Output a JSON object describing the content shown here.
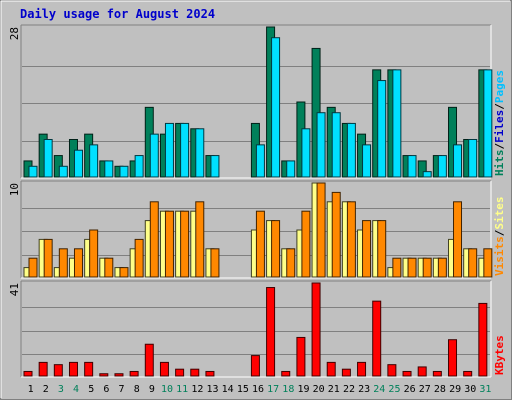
{
  "chart_data": {
    "type": "bar",
    "title": "Daily usage for August 2024",
    "days": [
      "1",
      "2",
      "3",
      "4",
      "5",
      "6",
      "7",
      "8",
      "9",
      "10",
      "11",
      "12",
      "13",
      "14",
      "15",
      "16",
      "17",
      "18",
      "19",
      "20",
      "21",
      "22",
      "23",
      "24",
      "25",
      "26",
      "27",
      "28",
      "29",
      "30",
      "31"
    ],
    "weekend_days": [
      3,
      4,
      10,
      11,
      17,
      18,
      24,
      25,
      31
    ],
    "colors": {
      "background": "#c0c0c0",
      "plot": "#c0c0c0",
      "grid": "#808080",
      "title": "#0000cc",
      "day_label": "#000000",
      "weekend_label": "#00805a",
      "hits": "#00805a",
      "files": "#00e0ff",
      "pages": "#00c0ff",
      "visits": "#ff8800",
      "sites": "#ffff88",
      "kbytes": "#ff0000",
      "slash": "#000000"
    },
    "panels": [
      {
        "id": "hits-files",
        "ymax_label": "28",
        "ymax": 28,
        "legend": [
          {
            "text": "Hits",
            "color_key": "hits"
          },
          {
            "text": "/",
            "color_key": "slash"
          },
          {
            "text": "Files",
            "color_key": "title"
          },
          {
            "text": "/",
            "color_key": "slash"
          },
          {
            "text": "Pages",
            "color_key": "pages"
          }
        ],
        "series": [
          {
            "name": "Hits",
            "color_key": "hits",
            "values": [
              3,
              8,
              4,
              7,
              8,
              3,
              2,
              3,
              13,
              8,
              10,
              9,
              4,
              0,
              0,
              10,
              28,
              3,
              14,
              24,
              13,
              10,
              8,
              20,
              20,
              4,
              3,
              4,
              13,
              7,
              20
            ]
          },
          {
            "name": "Files",
            "color_key": "files",
            "values": [
              2,
              7,
              2,
              5,
              6,
              3,
              2,
              4,
              8,
              10,
              10,
              9,
              4,
              0,
              0,
              6,
              26,
              3,
              9,
              12,
              12,
              10,
              6,
              18,
              20,
              4,
              1,
              4,
              6,
              7,
              20
            ]
          }
        ]
      },
      {
        "id": "visits-sites",
        "ymax_label": "10",
        "ymax": 10,
        "legend": [
          {
            "text": "Visits",
            "color_key": "visits"
          },
          {
            "text": "/",
            "color_key": "slash"
          },
          {
            "text": "Sites",
            "color_key": "sites"
          }
        ],
        "series": [
          {
            "name": "Sites",
            "color_key": "sites",
            "values": [
              1,
              4,
              1,
              2,
              4,
              2,
              1,
              3,
              6,
              7,
              7,
              7,
              3,
              0,
              0,
              5,
              6,
              3,
              5,
              10,
              8,
              8,
              5,
              6,
              1,
              2,
              2,
              2,
              4,
              3,
              2
            ]
          },
          {
            "name": "Visits",
            "color_key": "visits",
            "values": [
              2,
              4,
              3,
              3,
              5,
              2,
              1,
              4,
              8,
              7,
              7,
              8,
              3,
              0,
              0,
              7,
              6,
              3,
              7,
              10,
              9,
              8,
              6,
              6,
              2,
              2,
              2,
              2,
              8,
              3,
              3
            ]
          }
        ]
      },
      {
        "id": "kbytes",
        "ymax_label": "41",
        "ymax": 41,
        "legend": [
          {
            "text": "KBytes",
            "color_key": "kbytes"
          }
        ],
        "series": [
          {
            "name": "KBytes",
            "color_key": "kbytes",
            "values": [
              2,
              6,
              5,
              6,
              6,
              1,
              1,
              2,
              14,
              6,
              3,
              3,
              2,
              0,
              0,
              9,
              39,
              2,
              17,
              41,
              6,
              3,
              6,
              33,
              5,
              2,
              4,
              2,
              16,
              2,
              32
            ]
          }
        ]
      }
    ]
  }
}
